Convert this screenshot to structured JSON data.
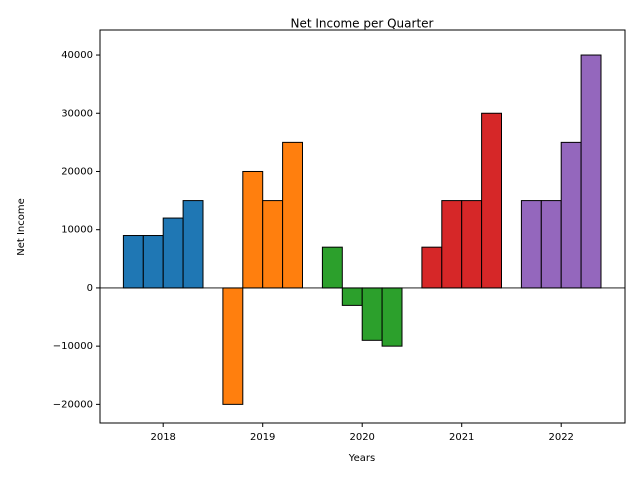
{
  "chart_data": {
    "type": "grouped-bar",
    "title": "Net Income per Quarter",
    "x_label": "Years",
    "y_label": "Net Income",
    "categories": [
      "2018",
      "2019",
      "2020",
      "2021",
      "2022"
    ],
    "values": [
      [
        9000,
        9000,
        12000,
        15000
      ],
      [
        -20000,
        20000,
        15000,
        25000
      ],
      [
        7000,
        -3000,
        -9000,
        -10000
      ],
      [
        7000,
        15000,
        15000,
        30000
      ],
      [
        15000,
        15000,
        25000,
        40000
      ]
    ],
    "colors": [
      "#1f77b4",
      "#ff7f0e",
      "#2ca02c",
      "#d62728",
      "#9467bd"
    ],
    "ylim": [
      -23200,
      44300
    ],
    "yticks": [
      {
        "value": -20000,
        "label": "−20000"
      },
      {
        "value": -10000,
        "label": "−10000"
      },
      0,
      10000,
      20000,
      30000,
      40000
    ],
    "zero_line": true
  }
}
